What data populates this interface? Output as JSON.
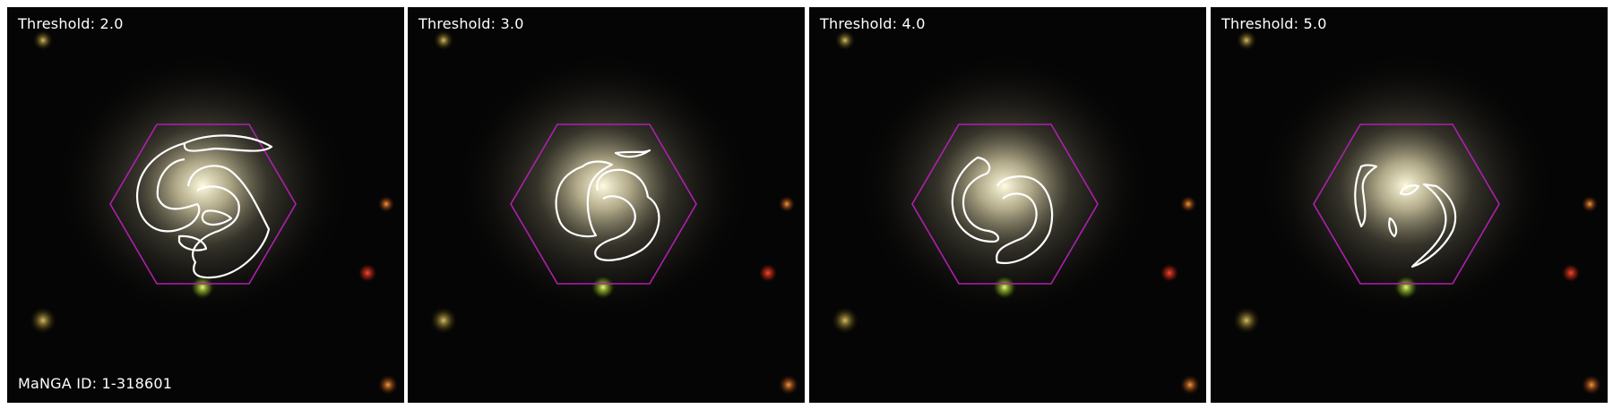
{
  "figure": {
    "manga_id_text": "MaNGA ID: 1-318601",
    "colors": {
      "background": "#050505",
      "hexagon": "#b01fb0",
      "contour": "#ffffff",
      "label_text": "#ffffff"
    }
  },
  "panels": [
    {
      "threshold_label": "Threshold: 2.0",
      "threshold": 2.0
    },
    {
      "threshold_label": "Threshold: 3.0",
      "threshold": 3.0
    },
    {
      "threshold_label": "Threshold: 4.0",
      "threshold": 4.0
    },
    {
      "threshold_label": "Threshold: 5.0",
      "threshold": 5.0
    }
  ]
}
